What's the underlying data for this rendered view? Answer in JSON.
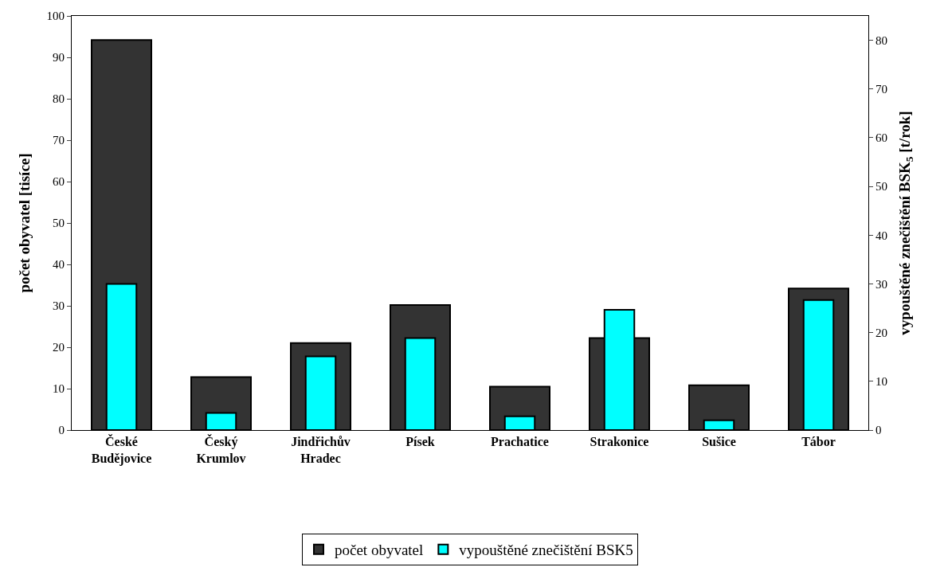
{
  "chart_data": {
    "type": "bar",
    "ylabel": "počet obyvatel [tisíce]",
    "y2label": "vypouštěné znečištění BSK$_{5}$ [t/rok]",
    "categories": [
      "České\nBudějovice",
      "Český\nKrumlov",
      "Jindřichův\nHradec",
      "Písek",
      "Prachatice",
      "Strakonice",
      "Sušice",
      "Tábor"
    ],
    "series": [
      {
        "name": "počet obyvatel",
        "color": "#333333",
        "values": [
          94.2,
          12.8,
          21.0,
          30.2,
          10.5,
          22.2,
          10.8,
          34.2
        ]
      },
      {
        "name": "vypouštěné znečištění BSK5",
        "color": "#00ffff",
        "axis": "y2",
        "values": [
          30.0,
          3.5,
          15.1,
          18.9,
          2.8,
          24.7,
          2.0,
          26.7
        ]
      }
    ],
    "ylim": [
      0,
      100
    ],
    "yticks": [
      0,
      10,
      20,
      30,
      40,
      50,
      60,
      70,
      80,
      90,
      100
    ],
    "y2lim": [
      0,
      85
    ],
    "y2ticks": [
      0,
      10,
      20,
      30,
      40,
      50,
      60,
      70,
      80
    ],
    "legend": "bottom"
  }
}
